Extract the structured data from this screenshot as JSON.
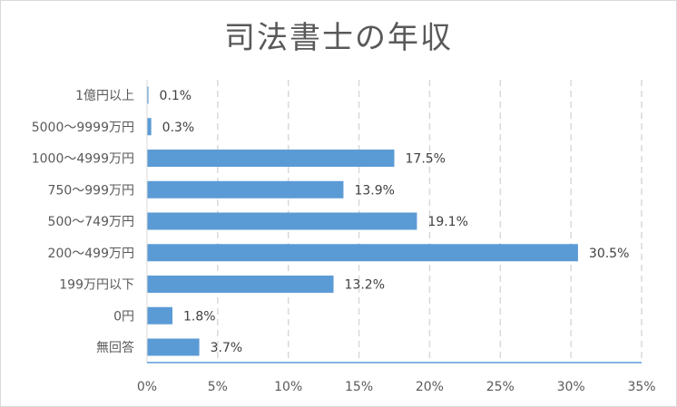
{
  "chart_data": {
    "type": "bar",
    "orientation": "horizontal",
    "title": "司法書士の年収",
    "categories": [
      "1億円以上",
      "5000～9999万円",
      "1000～4999万円",
      "750～999万円",
      "500～749万円",
      "200～499万円",
      "199万円以下",
      "0円",
      "無回答"
    ],
    "values": [
      0.1,
      0.3,
      17.5,
      13.9,
      19.1,
      30.5,
      13.2,
      1.8,
      3.7
    ],
    "data_labels": [
      "0.1%",
      "0.3%",
      "17.5%",
      "13.9%",
      "19.1%",
      "30.5%",
      "13.2%",
      "1.8%",
      "3.7%"
    ],
    "xlim": [
      0,
      35
    ],
    "xticks": [
      0,
      5,
      10,
      15,
      20,
      25,
      30,
      35
    ],
    "xtick_labels": [
      "0%",
      "5%",
      "10%",
      "15%",
      "20%",
      "25%",
      "30%",
      "35%"
    ],
    "grid": "vertical dashed",
    "legend": "none",
    "bar_color": "#5b9bd5"
  }
}
